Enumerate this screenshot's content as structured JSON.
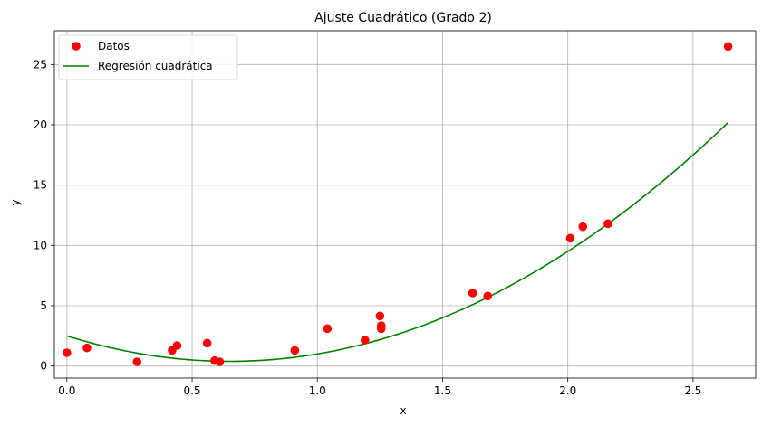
{
  "chart_data": {
    "type": "scatter",
    "title": "Ajuste Cuadrático (Grado 2)",
    "xlabel": "x",
    "ylabel": "y",
    "xlim": [
      -0.05,
      2.75
    ],
    "ylim": [
      -1.0,
      27.8
    ],
    "grid": true,
    "legend_position": "top-left",
    "x_ticks": [
      {
        "value": 0.0,
        "label": "0.0"
      },
      {
        "value": 0.5,
        "label": "0.5"
      },
      {
        "value": 1.0,
        "label": "1.0"
      },
      {
        "value": 1.5,
        "label": "1.5"
      },
      {
        "value": 2.0,
        "label": "2.0"
      },
      {
        "value": 2.5,
        "label": "2.5"
      }
    ],
    "y_ticks": [
      {
        "value": 0,
        "label": "0"
      },
      {
        "value": 5,
        "label": "5"
      },
      {
        "value": 10,
        "label": "10"
      },
      {
        "value": 15,
        "label": "15"
      },
      {
        "value": 20,
        "label": "20"
      },
      {
        "value": 25,
        "label": "25"
      }
    ],
    "series": [
      {
        "name": "Datos",
        "kind": "scatter",
        "color": "#ff0000",
        "points": [
          {
            "x": 0.0,
            "y": 1.1
          },
          {
            "x": 0.08,
            "y": 1.5
          },
          {
            "x": 0.28,
            "y": 0.35
          },
          {
            "x": 0.42,
            "y": 1.3
          },
          {
            "x": 0.44,
            "y": 1.7
          },
          {
            "x": 0.56,
            "y": 1.9
          },
          {
            "x": 0.59,
            "y": 0.45
          },
          {
            "x": 0.61,
            "y": 0.35
          },
          {
            "x": 0.91,
            "y": 1.3
          },
          {
            "x": 1.04,
            "y": 3.1
          },
          {
            "x": 1.19,
            "y": 2.15
          },
          {
            "x": 1.25,
            "y": 4.15
          },
          {
            "x": 1.255,
            "y": 3.35
          },
          {
            "x": 1.255,
            "y": 3.1
          },
          {
            "x": 1.62,
            "y": 6.05
          },
          {
            "x": 1.68,
            "y": 5.8
          },
          {
            "x": 2.01,
            "y": 10.6
          },
          {
            "x": 2.06,
            "y": 11.55
          },
          {
            "x": 2.16,
            "y": 11.8
          },
          {
            "x": 2.64,
            "y": 26.5
          }
        ]
      },
      {
        "name": "Regresión cuadrática",
        "kind": "line",
        "color": "#008000",
        "coefficients": {
          "a": 5.0,
          "b": -6.5,
          "c": 2.5
        },
        "x_range": [
          0.0,
          2.64
        ]
      }
    ]
  }
}
